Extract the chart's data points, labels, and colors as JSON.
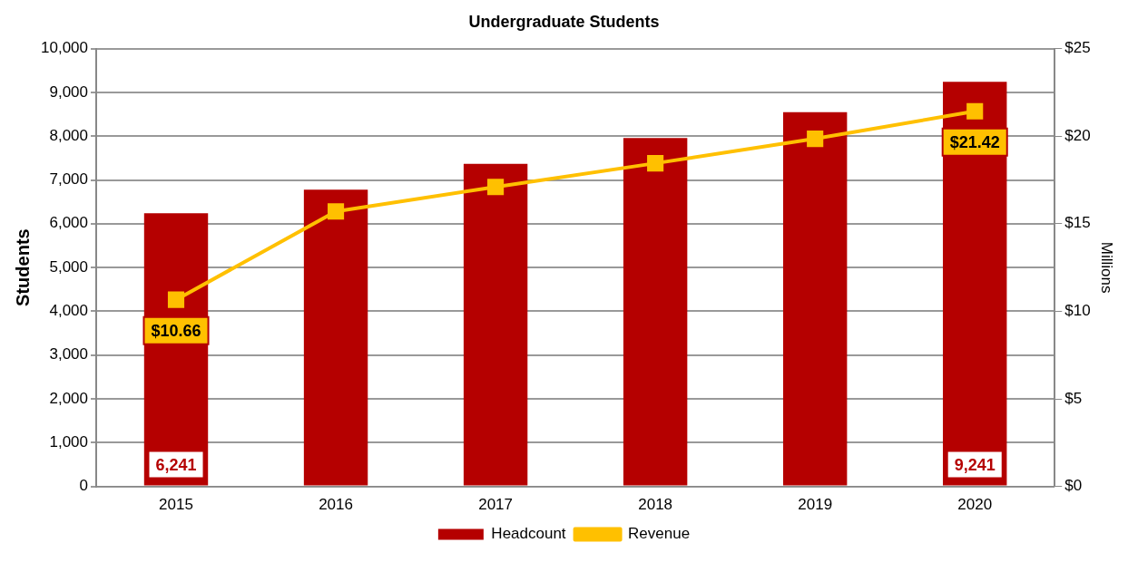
{
  "chart_data": {
    "type": "bar",
    "title": "Undergraduate Students",
    "ylabel": "Students",
    "y2label": "Millions",
    "categories": [
      "2015",
      "2016",
      "2017",
      "2018",
      "2019",
      "2020"
    ],
    "series": [
      {
        "name": "Headcount",
        "color": "#b50000",
        "values": [
          6241,
          6780,
          7370,
          7960,
          8550,
          9241
        ],
        "value_labels": [
          "6,241",
          null,
          null,
          null,
          null,
          "9,241"
        ]
      },
      {
        "name": "Revenue",
        "type": "line",
        "axis": "y2",
        "color": "#ffc000",
        "values": [
          10.66,
          15.7,
          17.1,
          18.45,
          19.85,
          21.42
        ],
        "value_labels": [
          "$10.66",
          null,
          null,
          null,
          null,
          "$21.42"
        ]
      }
    ],
    "ylim": [
      0,
      10000
    ],
    "yticks": [
      {
        "value": 0,
        "label": "0"
      },
      {
        "value": 1000,
        "label": "1,000"
      },
      {
        "value": 2000,
        "label": "2,000"
      },
      {
        "value": 3000,
        "label": "3,000"
      },
      {
        "value": 4000,
        "label": "4,000"
      },
      {
        "value": 5000,
        "label": "5,000"
      },
      {
        "value": 6000,
        "label": "6,000"
      },
      {
        "value": 7000,
        "label": "7,000"
      },
      {
        "value": 8000,
        "label": "8,000"
      },
      {
        "value": 9000,
        "label": "9,000"
      },
      {
        "value": 10000,
        "label": "10,000"
      }
    ],
    "y2lim": [
      0,
      25
    ],
    "y2ticks": [
      {
        "value": 0,
        "label": "$0"
      },
      {
        "value": 5,
        "label": "$5"
      },
      {
        "value": 10,
        "label": "$10"
      },
      {
        "value": 15,
        "label": "$15"
      },
      {
        "value": 20,
        "label": "$20"
      },
      {
        "value": 25,
        "label": "$25"
      }
    ],
    "grid": "y",
    "legend": "bottom",
    "marker": "square",
    "line_style": "solid"
  }
}
